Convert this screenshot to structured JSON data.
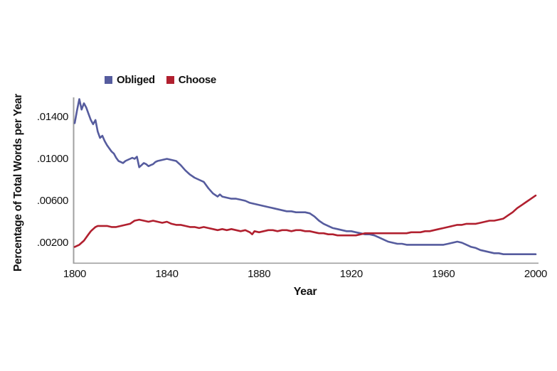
{
  "figure": {
    "background": "#ffffff",
    "text_color": "#111111",
    "axis_color": "#a0a0a0"
  },
  "chart_data": {
    "type": "line",
    "title": "",
    "xlabel": "Year",
    "ylabel": "Percentage of Total Words per Year",
    "xlim": [
      1800,
      2000
    ],
    "ylim": [
      0,
      0.016
    ],
    "grid": false,
    "legend_position": "top-left",
    "x_ticks": [
      {
        "value": 1800,
        "label": "1800"
      },
      {
        "value": 1840,
        "label": "1840"
      },
      {
        "value": 1880,
        "label": "1880"
      },
      {
        "value": 1920,
        "label": "1920"
      },
      {
        "value": 1960,
        "label": "1960"
      },
      {
        "value": 2000,
        "label": "2000"
      }
    ],
    "y_ticks": [
      {
        "value": 0.002,
        "label": ".00200"
      },
      {
        "value": 0.006,
        "label": ".00600"
      },
      {
        "value": 0.01,
        "label": ".01000"
      },
      {
        "value": 0.014,
        "label": ".01400"
      }
    ],
    "series": [
      {
        "name": "Obliged",
        "color": "#565c9e",
        "points": [
          [
            1800,
            0.0134
          ],
          [
            1801,
            0.0146
          ],
          [
            1802,
            0.0157
          ],
          [
            1803,
            0.0147
          ],
          [
            1804,
            0.0153
          ],
          [
            1805,
            0.0149
          ],
          [
            1806,
            0.0143
          ],
          [
            1807,
            0.0137
          ],
          [
            1808,
            0.0133
          ],
          [
            1809,
            0.0137
          ],
          [
            1810,
            0.0126
          ],
          [
            1811,
            0.012
          ],
          [
            1812,
            0.0122
          ],
          [
            1813,
            0.0117
          ],
          [
            1814,
            0.0113
          ],
          [
            1815,
            0.011
          ],
          [
            1816,
            0.0107
          ],
          [
            1817,
            0.0105
          ],
          [
            1818,
            0.0101
          ],
          [
            1819,
            0.0098
          ],
          [
            1820,
            0.0097
          ],
          [
            1821,
            0.0096
          ],
          [
            1822,
            0.0098
          ],
          [
            1823,
            0.0099
          ],
          [
            1824,
            0.01
          ],
          [
            1825,
            0.0101
          ],
          [
            1826,
            0.01
          ],
          [
            1827,
            0.0102
          ],
          [
            1828,
            0.0092
          ],
          [
            1829,
            0.0094
          ],
          [
            1830,
            0.0096
          ],
          [
            1831,
            0.0095
          ],
          [
            1832,
            0.0093
          ],
          [
            1833,
            0.0094
          ],
          [
            1834,
            0.0095
          ],
          [
            1835,
            0.0097
          ],
          [
            1836,
            0.0098
          ],
          [
            1838,
            0.0099
          ],
          [
            1840,
            0.01
          ],
          [
            1842,
            0.0099
          ],
          [
            1844,
            0.0098
          ],
          [
            1846,
            0.0094
          ],
          [
            1848,
            0.0089
          ],
          [
            1850,
            0.0085
          ],
          [
            1852,
            0.0082
          ],
          [
            1854,
            0.008
          ],
          [
            1856,
            0.0078
          ],
          [
            1858,
            0.0072
          ],
          [
            1860,
            0.0067
          ],
          [
            1862,
            0.0064
          ],
          [
            1863,
            0.0066
          ],
          [
            1864,
            0.0064
          ],
          [
            1866,
            0.0063
          ],
          [
            1868,
            0.0062
          ],
          [
            1870,
            0.0062
          ],
          [
            1872,
            0.0061
          ],
          [
            1874,
            0.006
          ],
          [
            1876,
            0.0058
          ],
          [
            1878,
            0.0057
          ],
          [
            1880,
            0.0056
          ],
          [
            1882,
            0.0055
          ],
          [
            1884,
            0.0054
          ],
          [
            1886,
            0.0053
          ],
          [
            1888,
            0.0052
          ],
          [
            1890,
            0.0051
          ],
          [
            1892,
            0.005
          ],
          [
            1894,
            0.005
          ],
          [
            1896,
            0.0049
          ],
          [
            1898,
            0.0049
          ],
          [
            1900,
            0.0049
          ],
          [
            1902,
            0.0048
          ],
          [
            1904,
            0.0045
          ],
          [
            1906,
            0.0041
          ],
          [
            1908,
            0.0038
          ],
          [
            1910,
            0.0036
          ],
          [
            1912,
            0.0034
          ],
          [
            1914,
            0.0033
          ],
          [
            1916,
            0.0032
          ],
          [
            1918,
            0.0031
          ],
          [
            1920,
            0.0031
          ],
          [
            1922,
            0.003
          ],
          [
            1924,
            0.0029
          ],
          [
            1926,
            0.0028
          ],
          [
            1928,
            0.0028
          ],
          [
            1930,
            0.0027
          ],
          [
            1932,
            0.0025
          ],
          [
            1934,
            0.0023
          ],
          [
            1936,
            0.0021
          ],
          [
            1938,
            0.002
          ],
          [
            1940,
            0.0019
          ],
          [
            1942,
            0.0019
          ],
          [
            1944,
            0.0018
          ],
          [
            1946,
            0.0018
          ],
          [
            1948,
            0.0018
          ],
          [
            1950,
            0.0018
          ],
          [
            1952,
            0.0018
          ],
          [
            1954,
            0.0018
          ],
          [
            1956,
            0.0018
          ],
          [
            1958,
            0.0018
          ],
          [
            1960,
            0.0018
          ],
          [
            1962,
            0.0019
          ],
          [
            1964,
            0.002
          ],
          [
            1966,
            0.0021
          ],
          [
            1968,
            0.002
          ],
          [
            1970,
            0.0018
          ],
          [
            1972,
            0.0016
          ],
          [
            1974,
            0.0015
          ],
          [
            1976,
            0.0013
          ],
          [
            1978,
            0.0012
          ],
          [
            1980,
            0.0011
          ],
          [
            1982,
            0.001
          ],
          [
            1984,
            0.001
          ],
          [
            1986,
            0.0009
          ],
          [
            1988,
            0.0009
          ],
          [
            1990,
            0.0009
          ],
          [
            1992,
            0.0009
          ],
          [
            1994,
            0.0009
          ],
          [
            1996,
            0.0009
          ],
          [
            1998,
            0.0009
          ],
          [
            2000,
            0.0009
          ]
        ]
      },
      {
        "name": "Choose",
        "color": "#b1202f",
        "points": [
          [
            1800,
            0.0016
          ],
          [
            1801,
            0.0017
          ],
          [
            1802,
            0.0018
          ],
          [
            1803,
            0.002
          ],
          [
            1804,
            0.0022
          ],
          [
            1805,
            0.0025
          ],
          [
            1806,
            0.0028
          ],
          [
            1807,
            0.0031
          ],
          [
            1808,
            0.0033
          ],
          [
            1809,
            0.0035
          ],
          [
            1810,
            0.0036
          ],
          [
            1812,
            0.0036
          ],
          [
            1814,
            0.0036
          ],
          [
            1816,
            0.0035
          ],
          [
            1818,
            0.0035
          ],
          [
            1820,
            0.0036
          ],
          [
            1822,
            0.0037
          ],
          [
            1824,
            0.0038
          ],
          [
            1826,
            0.0041
          ],
          [
            1828,
            0.0042
          ],
          [
            1830,
            0.0041
          ],
          [
            1832,
            0.004
          ],
          [
            1834,
            0.0041
          ],
          [
            1836,
            0.004
          ],
          [
            1838,
            0.0039
          ],
          [
            1840,
            0.004
          ],
          [
            1842,
            0.0038
          ],
          [
            1844,
            0.0037
          ],
          [
            1846,
            0.0037
          ],
          [
            1848,
            0.0036
          ],
          [
            1850,
            0.0035
          ],
          [
            1852,
            0.0035
          ],
          [
            1854,
            0.0034
          ],
          [
            1856,
            0.0035
          ],
          [
            1858,
            0.0034
          ],
          [
            1860,
            0.0033
          ],
          [
            1862,
            0.0032
          ],
          [
            1864,
            0.0033
          ],
          [
            1866,
            0.0032
          ],
          [
            1868,
            0.0033
          ],
          [
            1870,
            0.0032
          ],
          [
            1872,
            0.0031
          ],
          [
            1874,
            0.0032
          ],
          [
            1876,
            0.003
          ],
          [
            1877,
            0.0028
          ],
          [
            1878,
            0.0031
          ],
          [
            1880,
            0.003
          ],
          [
            1882,
            0.0031
          ],
          [
            1884,
            0.0032
          ],
          [
            1886,
            0.0032
          ],
          [
            1888,
            0.0031
          ],
          [
            1890,
            0.0032
          ],
          [
            1892,
            0.0032
          ],
          [
            1894,
            0.0031
          ],
          [
            1896,
            0.0032
          ],
          [
            1898,
            0.0032
          ],
          [
            1900,
            0.0031
          ],
          [
            1902,
            0.0031
          ],
          [
            1904,
            0.003
          ],
          [
            1906,
            0.0029
          ],
          [
            1908,
            0.0029
          ],
          [
            1910,
            0.0028
          ],
          [
            1912,
            0.0028
          ],
          [
            1914,
            0.0027
          ],
          [
            1916,
            0.0027
          ],
          [
            1918,
            0.0027
          ],
          [
            1920,
            0.0027
          ],
          [
            1922,
            0.0027
          ],
          [
            1924,
            0.0028
          ],
          [
            1926,
            0.0029
          ],
          [
            1928,
            0.0029
          ],
          [
            1930,
            0.0029
          ],
          [
            1932,
            0.0029
          ],
          [
            1934,
            0.0029
          ],
          [
            1936,
            0.0029
          ],
          [
            1938,
            0.0029
          ],
          [
            1940,
            0.0029
          ],
          [
            1942,
            0.0029
          ],
          [
            1944,
            0.0029
          ],
          [
            1946,
            0.003
          ],
          [
            1948,
            0.003
          ],
          [
            1950,
            0.003
          ],
          [
            1952,
            0.0031
          ],
          [
            1954,
            0.0031
          ],
          [
            1956,
            0.0032
          ],
          [
            1958,
            0.0033
          ],
          [
            1960,
            0.0034
          ],
          [
            1962,
            0.0035
          ],
          [
            1964,
            0.0036
          ],
          [
            1966,
            0.0037
          ],
          [
            1968,
            0.0037
          ],
          [
            1970,
            0.0038
          ],
          [
            1972,
            0.0038
          ],
          [
            1974,
            0.0038
          ],
          [
            1976,
            0.0039
          ],
          [
            1978,
            0.004
          ],
          [
            1980,
            0.0041
          ],
          [
            1982,
            0.0041
          ],
          [
            1984,
            0.0042
          ],
          [
            1986,
            0.0043
          ],
          [
            1988,
            0.0046
          ],
          [
            1990,
            0.0049
          ],
          [
            1992,
            0.0053
          ],
          [
            1994,
            0.0056
          ],
          [
            1996,
            0.0059
          ],
          [
            1998,
            0.0062
          ],
          [
            2000,
            0.0065
          ]
        ]
      }
    ]
  }
}
